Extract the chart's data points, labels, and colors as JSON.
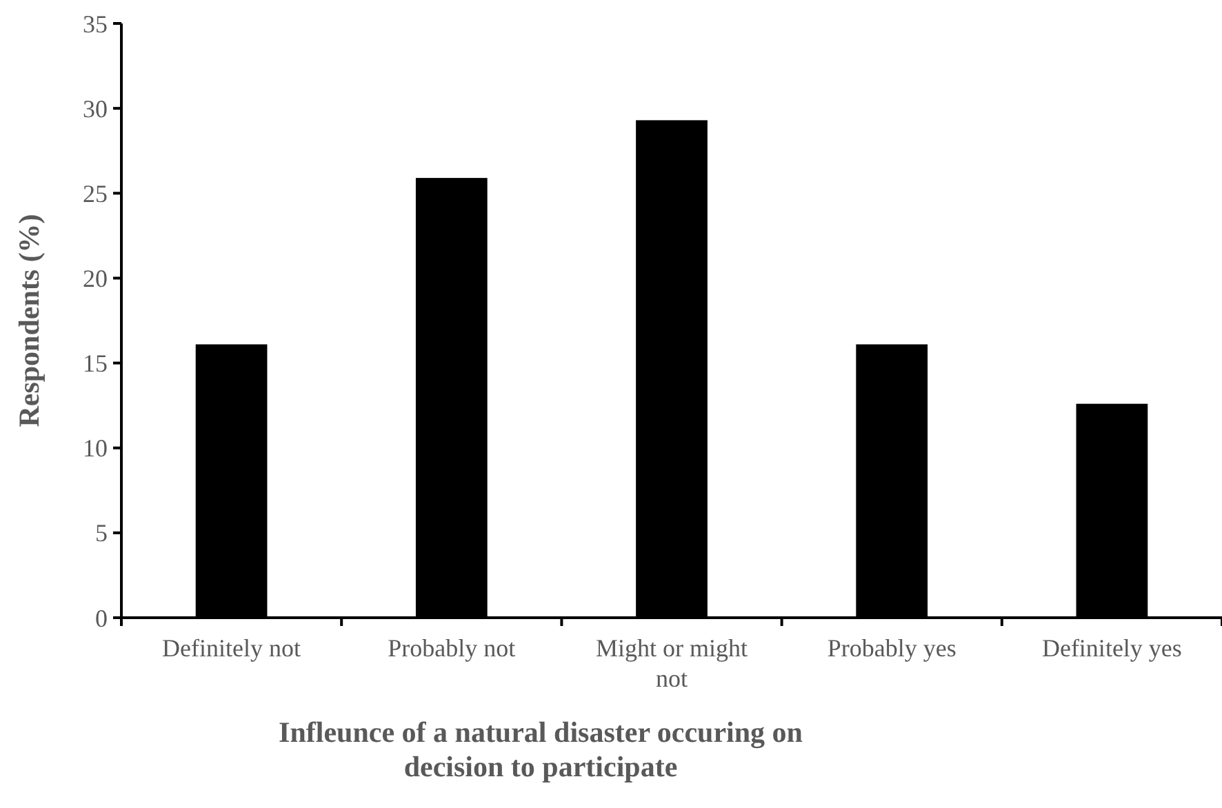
{
  "chart_data": {
    "type": "bar",
    "xlabel": "Infleunce of a natural disaster occuring on decision to participate",
    "ylabel": "Respondents (%)",
    "categories": [
      "Definitely not",
      "Probably not",
      "Might or might not",
      "Probably yes",
      "Definitely yes"
    ],
    "values": [
      16.1,
      25.9,
      29.3,
      16.1,
      12.6
    ],
    "color": "#000000",
    "ylim": [
      0,
      35
    ],
    "yticks": [
      0,
      5,
      10,
      15,
      20,
      25,
      30,
      35
    ],
    "grid": false
  }
}
